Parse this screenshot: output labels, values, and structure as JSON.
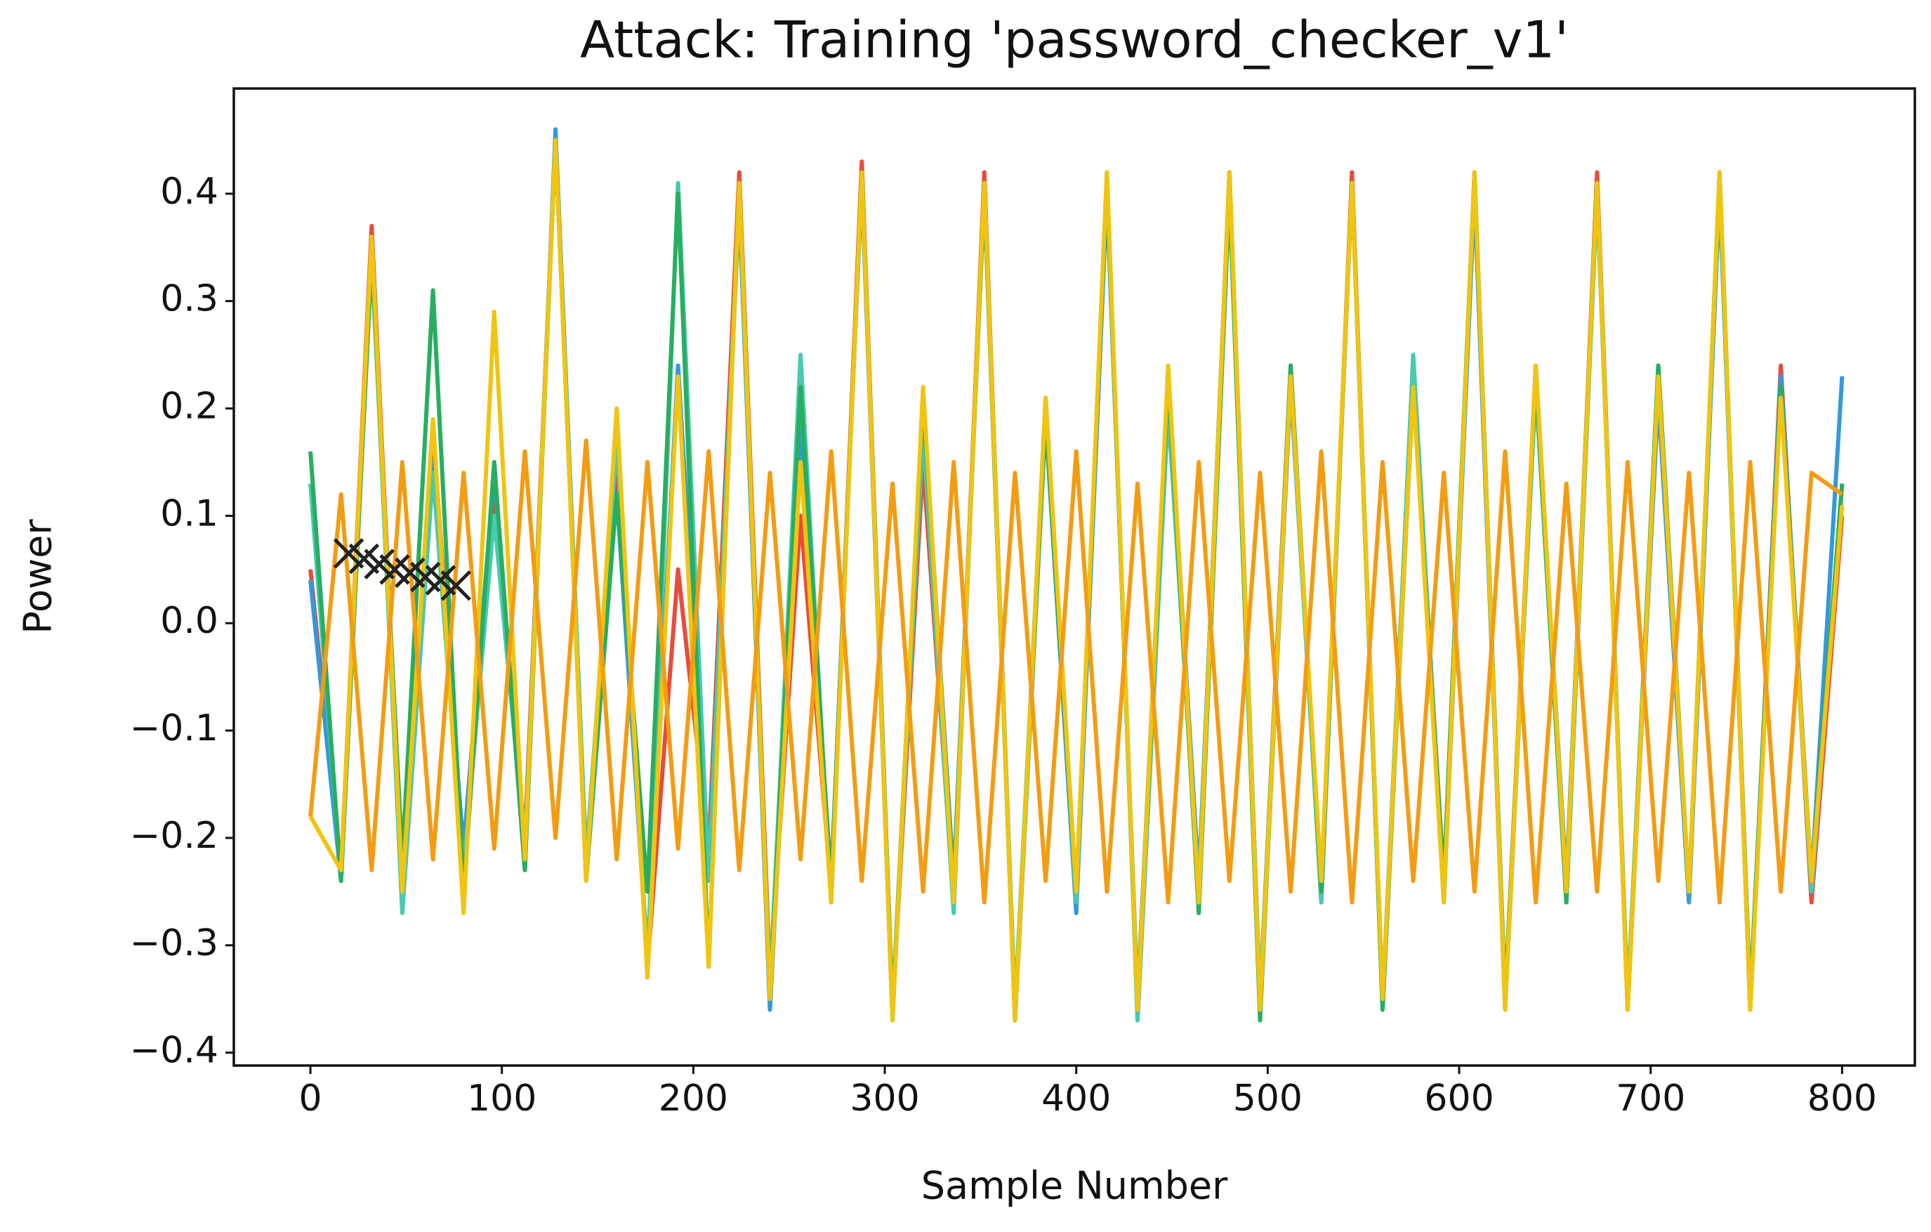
{
  "chart_data": {
    "type": "line",
    "title": "Attack: Training 'password_checker_v1'",
    "xlabel": "Sample Number",
    "ylabel": "Power",
    "xlim": [
      -40,
      838
    ],
    "ylim": [
      -0.412,
      0.498
    ],
    "xticks": [
      0,
      100,
      200,
      300,
      400,
      500,
      600,
      700,
      800
    ],
    "yticks": [
      {
        "value": -0.4,
        "label": "−0.4"
      },
      {
        "value": -0.3,
        "label": "−0.3"
      },
      {
        "value": -0.2,
        "label": "−0.2"
      },
      {
        "value": -0.1,
        "label": "−0.1"
      },
      {
        "value": 0,
        "label": "0.0"
      },
      0.1,
      0.2,
      0.3,
      0.4
    ],
    "grid": false,
    "x": [
      0,
      16,
      32,
      48,
      64,
      80,
      96,
      112,
      128,
      144,
      160,
      176,
      192,
      208,
      224,
      240,
      256,
      272,
      288,
      304,
      320,
      336,
      352,
      368,
      384,
      400,
      416,
      432,
      448,
      464,
      480,
      496,
      512,
      528,
      544,
      560,
      576,
      592,
      608,
      624,
      640,
      656,
      672,
      688,
      704,
      720,
      736,
      752,
      768,
      784,
      800
    ],
    "series": [
      {
        "color": "#e74c3c",
        "values": [
          0.05,
          -0.23,
          0.37,
          -0.24,
          0.18,
          -0.22,
          0.12,
          -0.2,
          0.45,
          -0.23,
          0.15,
          -0.32,
          0.05,
          -0.21,
          0.42,
          -0.33,
          0.1,
          -0.25,
          0.43,
          -0.36,
          0.15,
          -0.26,
          0.42,
          -0.37,
          0.2,
          -0.26,
          0.41,
          -0.36,
          0.22,
          -0.25,
          0.42,
          -0.35,
          0.24,
          -0.26,
          0.42,
          -0.36,
          0.23,
          -0.24,
          0.41,
          -0.35,
          0.24,
          -0.25,
          0.42,
          -0.36,
          0.22,
          -0.25,
          0.41,
          -0.36,
          0.24,
          -0.26,
          0.1
        ]
      },
      {
        "color": "#3498db",
        "values": [
          0.04,
          -0.24,
          0.36,
          -0.25,
          0.15,
          -0.21,
          0.14,
          -0.23,
          0.46,
          -0.22,
          0.12,
          -0.31,
          0.24,
          -0.23,
          0.39,
          -0.36,
          0.18,
          -0.24,
          0.41,
          -0.37,
          0.21,
          -0.24,
          0.4,
          -0.36,
          0.19,
          -0.27,
          0.4,
          -0.35,
          0.23,
          -0.24,
          0.41,
          -0.36,
          0.22,
          -0.25,
          0.41,
          -0.35,
          0.24,
          -0.26,
          0.4,
          -0.36,
          0.23,
          -0.24,
          0.41,
          -0.35,
          0.21,
          -0.26,
          0.4,
          -0.35,
          0.23,
          -0.24,
          0.23
        ]
      },
      {
        "color": "#48c9b0",
        "values": [
          0.13,
          -0.24,
          0.35,
          -0.27,
          0.14,
          -0.23,
          0.1,
          -0.21,
          0.45,
          -0.22,
          0.17,
          -0.32,
          0.41,
          -0.24,
          0.4,
          -0.34,
          0.25,
          -0.26,
          0.42,
          -0.36,
          0.18,
          -0.27,
          0.41,
          -0.36,
          0.21,
          -0.26,
          0.42,
          -0.37,
          0.2,
          -0.25,
          0.42,
          -0.35,
          0.23,
          -0.26,
          0.41,
          -0.36,
          0.25,
          -0.25,
          0.42,
          -0.35,
          0.22,
          -0.26,
          0.4,
          -0.35,
          0.24,
          -0.25,
          0.41,
          -0.36,
          0.22,
          -0.25,
          0.13
        ]
      },
      {
        "color": "#27ae60",
        "values": [
          0.16,
          -0.24,
          0.34,
          -0.22,
          0.31,
          -0.25,
          0.15,
          -0.23,
          0.45,
          -0.24,
          0.12,
          -0.25,
          0.4,
          -0.32,
          0.41,
          -0.35,
          0.22,
          -0.25,
          0.42,
          -0.36,
          0.21,
          -0.25,
          0.4,
          -0.37,
          0.19,
          -0.25,
          0.41,
          -0.36,
          0.23,
          -0.27,
          0.4,
          -0.37,
          0.24,
          -0.25,
          0.41,
          -0.36,
          0.22,
          -0.24,
          0.42,
          -0.35,
          0.23,
          -0.26,
          0.41,
          -0.36,
          0.24,
          -0.25,
          0.42,
          -0.35,
          0.22,
          -0.24,
          0.13
        ]
      },
      {
        "color": "#f1c40f",
        "values": [
          -0.18,
          -0.23,
          0.36,
          -0.25,
          0.19,
          -0.27,
          0.29,
          -0.22,
          0.45,
          -0.24,
          0.2,
          -0.33,
          0.23,
          -0.32,
          0.41,
          -0.35,
          0.15,
          -0.26,
          0.42,
          -0.37,
          0.22,
          -0.26,
          0.41,
          -0.37,
          0.21,
          -0.25,
          0.42,
          -0.36,
          0.24,
          -0.26,
          0.42,
          -0.36,
          0.23,
          -0.24,
          0.41,
          -0.35,
          0.22,
          -0.26,
          0.42,
          -0.36,
          0.24,
          -0.25,
          0.41,
          -0.36,
          0.23,
          -0.25,
          0.42,
          -0.36,
          0.21,
          -0.24,
          0.11
        ]
      },
      {
        "color": "#f39c12",
        "values": [
          -0.18,
          0.12,
          -0.23,
          0.15,
          -0.22,
          0.14,
          -0.21,
          0.16,
          -0.2,
          0.17,
          -0.22,
          0.15,
          -0.21,
          0.16,
          -0.23,
          0.14,
          -0.22,
          0.16,
          -0.24,
          0.13,
          -0.25,
          0.15,
          -0.26,
          0.14,
          -0.24,
          0.16,
          -0.25,
          0.13,
          -0.26,
          0.15,
          -0.24,
          0.14,
          -0.25,
          0.16,
          -0.26,
          0.15,
          -0.24,
          0.14,
          -0.25,
          0.16,
          -0.26,
          0.13,
          -0.25,
          0.15,
          -0.24,
          0.14,
          -0.26,
          0.15,
          -0.25,
          0.14,
          0.12
        ]
      }
    ],
    "markers": {
      "marker": "x",
      "color": "#222222",
      "x": [
        20,
        28,
        36,
        44,
        52,
        60,
        68,
        76
      ],
      "values": [
        0.065,
        0.06,
        0.055,
        0.05,
        0.047,
        0.043,
        0.04,
        0.035
      ]
    }
  }
}
